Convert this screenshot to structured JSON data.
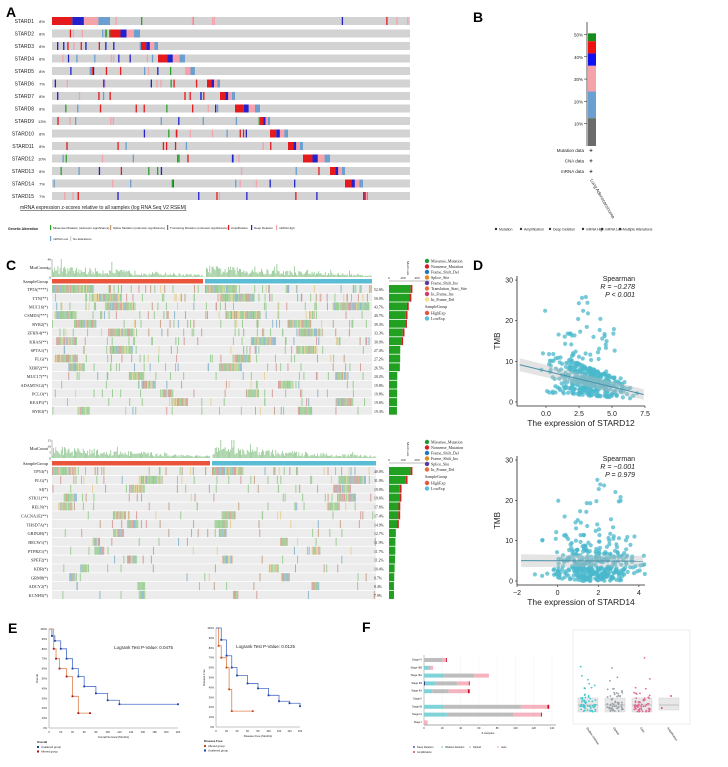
{
  "panel_labels": [
    "A",
    "B",
    "C",
    "D",
    "E",
    "F"
  ],
  "colors": {
    "missense": "#2ca02c",
    "amplification": "#e41a1c",
    "deep_deletion": "#2222cc",
    "mrna_high": "#f4a3ab",
    "mrna_low": "#6a9fd0",
    "no_alteration": "#d3d3d3",
    "multiple": "#6b6b6b",
    "high_exp": "#e8553a",
    "low_exp": "#5bbcd6",
    "scatter": "#4bb8cc"
  },
  "chart_data": [
    {
      "id": "A",
      "type": "heatmap",
      "genes": [
        "STARD1",
        "STARD2",
        "STARD3",
        "STARD4",
        "STARD5",
        "STARD6",
        "STARD7",
        "STARD8",
        "STARD9",
        "STARD10",
        "STARD11",
        "STARD12",
        "STARD13",
        "STARD14",
        "STARD15"
      ],
      "percents": [
        "8%",
        "8%",
        "8%",
        "8%",
        "8%",
        "7%",
        "8%",
        "8%",
        "13%",
        "8%",
        "8%",
        "10%",
        "8%",
        "7%",
        "7%"
      ],
      "caption": "mRNA expression z-scores relative to all samples (log RNA Seq V2 RSEM)",
      "legend_title": "Genetic Alteration",
      "legend": [
        "Missense Mutation (unknown significance)",
        "Splice Mutation (unknown significance)",
        "Truncating Mutation (unknown significance)",
        "Amplification",
        "Deep Deletion",
        "mRNA High",
        "mRNA Low",
        "No alterations"
      ]
    },
    {
      "id": "B",
      "type": "bar",
      "category": "Lung Adenocarcinoma",
      "yticks": [
        "10%",
        "20%",
        "30%",
        "40%",
        "50%"
      ],
      "ylim": [
        0,
        52
      ],
      "stack": [
        {
          "name": "Multiple Alterations",
          "value": 12.5
        },
        {
          "name": "mRNA Low",
          "value": 12
        },
        {
          "name": "mRNA High",
          "value": 11.5
        },
        {
          "name": "Deep Deletion",
          "value": 5.5
        },
        {
          "name": "Amplification",
          "value": 5.5
        },
        {
          "name": "Mutation",
          "value": 3.5
        }
      ],
      "data_rows": [
        "Mutation data",
        "CNA data",
        "mRNA data"
      ],
      "legend": [
        "Mutation",
        "Amplification",
        "Deep Deletion",
        "mRNA High",
        "mRNA Low",
        "Multiple Alterations"
      ]
    },
    {
      "id": "C-top",
      "type": "heatmap",
      "genes": [
        "TP53(****)",
        "TTN(**)",
        "MUC16(*)",
        "CSMD3(***)",
        "RYR2(*)",
        "ZFHX4(**)",
        "KRAS(**)",
        "SPTA1(*)",
        "FLG(*)",
        "XIRP2(**)",
        "MUC17(**)",
        "ADAMTS12(*)",
        "PCLO(*)",
        "KEAP1(*)",
        "RYR3(*)"
      ],
      "freq": [
        "52.6%",
        "50.0%",
        "43.7%",
        "40.7%",
        "39.3%",
        "33.3%",
        "30.0%",
        "27.4%",
        "27.2%",
        "26.5%",
        "20.2%",
        "19.8%",
        "19.8%",
        "19.6%",
        "19.3%"
      ],
      "mutcount_label": "MutCount",
      "mutcount_ticks": [
        "0",
        "20",
        "40"
      ],
      "side_ticks": [
        "0",
        "200",
        "400"
      ],
      "group_label": "SampleGroup",
      "legend": [
        "Missense_Mutation",
        "Nonsense_Mutation",
        "Frame_Shift_Del",
        "Splice_Site",
        "Frame_Shift_Ins",
        "Translation_Start_Site",
        "In_Frame_Ins",
        "In_Frame_Del"
      ],
      "group_legend_title": "SampleGroup",
      "groups": [
        "HighExp",
        "LowExp"
      ]
    },
    {
      "id": "C-bottom",
      "type": "heatmap",
      "genes": [
        "TP53(*)",
        "FLG(*)",
        "SI(*)",
        "STK11(**)",
        "RELN(*)",
        "CACNA1E(**)",
        "THSD7A(*)",
        "GRIN2B(*)",
        "HECW1(*)",
        "PTPRZ1(*)",
        "SPEF2(*)",
        "KDR(*)",
        "GRM8(*)",
        "ADCY2(*)",
        "KCNH5(*)"
      ],
      "freq": [
        "40.0%",
        "31.0%",
        "19.9%",
        "19.6%",
        "17.6%",
        "17.4%",
        "14.9%",
        "12.7%",
        "11.9%",
        "11.7%",
        "11.2%",
        "10.4%",
        "9.7%",
        "8.4%",
        "7.9%"
      ],
      "mutcount_label": "MutCount",
      "mutcount_ticks": [
        "0",
        "5",
        "10",
        "15"
      ],
      "side_ticks": [
        "0",
        "100",
        "200"
      ],
      "group_label": "SampleGroup",
      "legend": [
        "Missense_Mutation",
        "Nonsense_Mutation",
        "Frame_Shift_Del",
        "Frame_Shift_Ins",
        "Splice_Site",
        "In_Frame_Del"
      ],
      "group_legend_title": "SampleGroup",
      "groups": [
        "HighExp",
        "LowExp"
      ]
    },
    {
      "id": "D-top",
      "type": "scatter",
      "xlabel": "The expression of STARD12",
      "ylabel": "TMB",
      "xticks": [
        "0.0",
        "2.5",
        "5.0",
        "7.5"
      ],
      "yticks": [
        "0",
        "10",
        "20",
        "30"
      ],
      "xlim": [
        -2.2,
        7.5
      ],
      "ylim": [
        -1,
        31
      ],
      "stat_title": "Spearman",
      "r_text": "R = −0.278",
      "p_text": "P < 0.001",
      "r": -0.278,
      "fit": {
        "intercept": 7.6,
        "slope": -0.78
      }
    },
    {
      "id": "D-bottom",
      "type": "scatter",
      "xlabel": "The expression of STARD14",
      "ylabel": "TMB",
      "xticks": [
        "−2",
        "0",
        "2",
        "4"
      ],
      "yticks": [
        "0",
        "10",
        "20",
        "30"
      ],
      "xlim": [
        -2,
        4.3
      ],
      "ylim": [
        -1,
        31
      ],
      "stat_title": "Spearman",
      "r_text": "R = −0.001",
      "p_text": "P = 0.979",
      "r": -0.001,
      "fit": {
        "intercept": 5.0,
        "slope": -0.02
      }
    },
    {
      "id": "E-left",
      "type": "line",
      "pvalue_text": "Logrank Test P-Value: 0.0475",
      "ylabel": "Overall",
      "xlabel": "Overall Survival (Months)",
      "yticks": [
        "0%",
        "10%",
        "20%",
        "30%",
        "40%",
        "50%",
        "60%",
        "70%",
        "80%",
        "90%",
        "100%"
      ],
      "xticks": [
        "0",
        "20",
        "40",
        "60",
        "80",
        "100",
        "120",
        "140",
        "160",
        "180",
        "200",
        "220"
      ],
      "xlim": [
        0,
        220
      ],
      "ylim": [
        0,
        100
      ],
      "legend_title": "Overall",
      "series": [
        {
          "name": "Unaltered group",
          "x": [
            0,
            5,
            10,
            20,
            30,
            40,
            50,
            60,
            80,
            100,
            120,
            220
          ],
          "y": [
            100,
            93,
            88,
            80,
            70,
            60,
            52,
            42,
            35,
            28,
            24,
            24
          ]
        },
        {
          "name": "Altered group",
          "x": [
            0,
            8,
            12,
            18,
            30,
            40,
            50,
            70
          ],
          "y": [
            100,
            80,
            70,
            60,
            52,
            32,
            15,
            15
          ]
        }
      ]
    },
    {
      "id": "E-right",
      "type": "line",
      "pvalue_text": "Logrank Test P-Value: 0.0125",
      "ylabel": "Disease Free",
      "xlabel": "Disease Free (Months)",
      "yticks": [
        "0%",
        "10%",
        "20%",
        "30%",
        "40%",
        "50%",
        "60%",
        "70%",
        "80%",
        "90%",
        "100%"
      ],
      "xticks": [
        "0",
        "20",
        "40",
        "60",
        "80",
        "100",
        "120",
        "140",
        "160"
      ],
      "xlim": [
        0,
        160
      ],
      "ylim": [
        0,
        100
      ],
      "legend_title": "Disease Free",
      "series": [
        {
          "name": "Altered group",
          "x": [
            0,
            5,
            10,
            20,
            25,
            30,
            70
          ],
          "y": [
            100,
            82,
            70,
            60,
            38,
            16,
            16
          ]
        },
        {
          "name": "Unaltered group",
          "x": [
            0,
            10,
            20,
            30,
            40,
            60,
            80,
            100,
            120,
            140,
            160
          ],
          "y": [
            100,
            88,
            72,
            60,
            52,
            44,
            39,
            32,
            26,
            24,
            21
          ]
        }
      ]
    },
    {
      "id": "F-left",
      "type": "bar",
      "categories": [
        "Stage IV",
        "Stage IIIB",
        "Stage IIIA",
        "Stage IIB",
        "Stage IIA",
        "Stage II",
        "Stage IB",
        "Stage IA",
        "Stage I"
      ],
      "xlabel": "# samples",
      "xticks": [
        "0",
        "20",
        "40",
        "60",
        "80",
        "100",
        "120",
        "140"
      ],
      "xlim": [
        0,
        140
      ],
      "series": [
        {
          "name": "Deep Deletion",
          "values": [
            0,
            0,
            0,
            1,
            0,
            0,
            0,
            0,
            0
          ]
        },
        {
          "name": "Shallow Deletion",
          "values": [
            0,
            5,
            22,
            12,
            9,
            0,
            22,
            25,
            0
          ]
        },
        {
          "name": "Diploid",
          "values": [
            20,
            2,
            33,
            23,
            18,
            0,
            84,
            73,
            0
          ]
        },
        {
          "name": "Gain",
          "values": [
            4,
            3,
            16,
            13,
            21,
            0,
            29,
            30,
            4
          ]
        },
        {
          "name": "Amplification",
          "values": [
            1,
            0,
            0,
            1,
            2,
            0,
            2,
            1,
            0
          ]
        }
      ]
    },
    {
      "id": "F-right",
      "type": "scatter",
      "categories": [
        "Shallow Deletion",
        "Diploid",
        "Gain",
        "Amplification"
      ]
    }
  ]
}
